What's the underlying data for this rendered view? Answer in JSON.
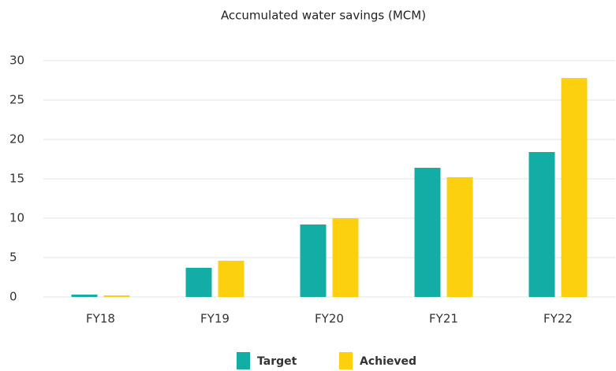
{
  "chart_data": {
    "type": "bar",
    "title": "Accumulated water savings (MCM)",
    "categories": [
      "FY18",
      "FY19",
      "FY20",
      "FY21",
      "FY22"
    ],
    "series": [
      {
        "name": "Target",
        "color": "#13ada5",
        "values": [
          0.3,
          3.7,
          9.2,
          16.4,
          18.4
        ]
      },
      {
        "name": "Achieved",
        "color": "#fdd00f",
        "values": [
          0.2,
          4.6,
          10.0,
          15.2,
          27.8
        ]
      }
    ],
    "ylim": [
      0,
      30
    ],
    "yticks": [
      0,
      5,
      10,
      15,
      20,
      25,
      30
    ],
    "grid": true,
    "legend": "bottom"
  }
}
